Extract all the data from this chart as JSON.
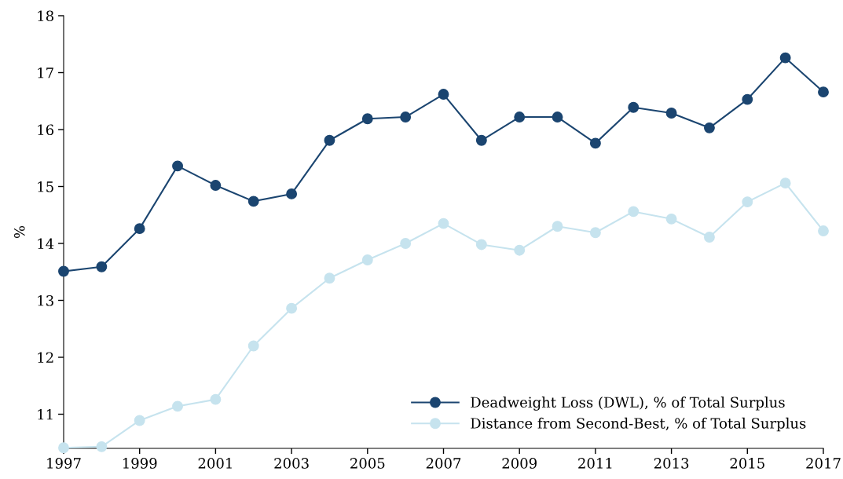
{
  "chart_data": {
    "type": "line",
    "x": [
      1997,
      1998,
      1999,
      2000,
      2001,
      2002,
      2003,
      2004,
      2005,
      2006,
      2007,
      2008,
      2009,
      2010,
      2011,
      2012,
      2013,
      2014,
      2015,
      2016,
      2017
    ],
    "series": [
      {
        "name": "Deadweight Loss (DWL), % of Total Surplus",
        "color": "#1b4570",
        "values": [
          13.51,
          13.59,
          14.26,
          15.36,
          15.02,
          14.74,
          14.87,
          15.81,
          16.19,
          16.22,
          16.62,
          15.81,
          16.22,
          16.22,
          15.76,
          16.39,
          16.29,
          16.03,
          16.53,
          17.26,
          16.66
        ]
      },
      {
        "name": "Distance from Second-Best, % of Total Surplus",
        "color": "#c6e3ee",
        "values": [
          10.41,
          10.43,
          10.89,
          11.14,
          11.26,
          12.2,
          12.86,
          13.39,
          13.71,
          14.0,
          14.35,
          13.98,
          13.88,
          14.3,
          14.19,
          14.56,
          14.43,
          14.11,
          14.73,
          15.06,
          14.22
        ]
      }
    ],
    "ylabel": "%",
    "xlim": [
      1997,
      2017
    ],
    "xticks": [
      1997,
      1999,
      2001,
      2003,
      2005,
      2007,
      2009,
      2011,
      2013,
      2015,
      2017
    ],
    "ylim": [
      10.4,
      18
    ],
    "yticks": [
      11,
      12,
      13,
      14,
      15,
      16,
      17,
      18
    ],
    "grid": false,
    "legend": "bottom right",
    "marker": "circle",
    "line_style": "solid"
  }
}
